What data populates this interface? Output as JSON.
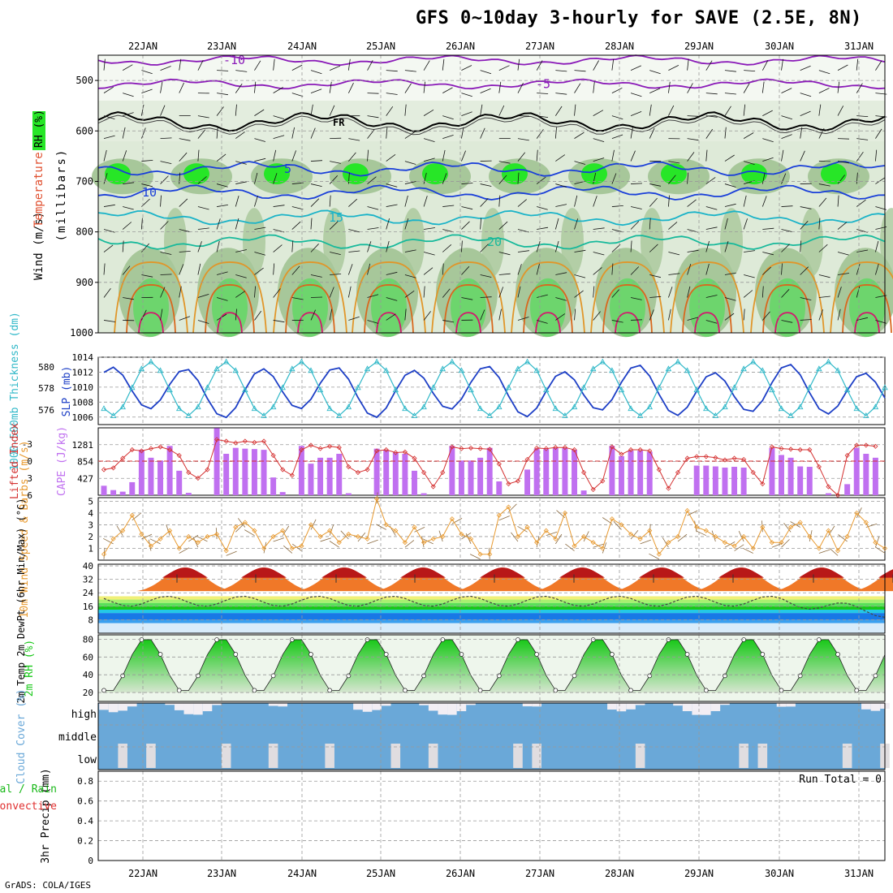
{
  "title": "GFS 0~10day 3-hourly for SAVE (2.5E, 8N)",
  "credit": "GrADS: COLA/IGES",
  "colors": {
    "rh_green_light": "#dbe8d5",
    "rh_green_mid": "#a7c79a",
    "rh_green_bright": "#27e627",
    "temp_purple": "#8a1ab8",
    "temp_blue": "#1a3fd9",
    "temp_cyan": "#1ab3c8",
    "temp_teal": "#17b99b",
    "temp_orange": "#e0962a",
    "temp_red": "#d11a6e",
    "slp_line": "#1d3fc6",
    "thickness_line": "#30b8c8",
    "cape_bar": "#c070f0",
    "lifted_index": "#d43030",
    "wind_line": "#e89a30",
    "rh2m_fill": "#18c818",
    "cloud_fill": "#6aa8d8",
    "rain_green": "#18b818",
    "conv_red": "#e03030"
  },
  "chart_data": [
    {
      "type": "area",
      "panel": "cross-section",
      "x_tick_labels": [
        "22JAN",
        "23JAN",
        "24JAN",
        "25JAN",
        "26JAN",
        "27JAN",
        "28JAN",
        "29JAN",
        "30JAN",
        "31JAN"
      ],
      "y_label": "(millibars)",
      "ylim": [
        450,
        1000
      ],
      "y_ticks": [
        500,
        600,
        700,
        800,
        900,
        1000
      ],
      "legend_labels": [
        "Wind (m/s)",
        "Temperature (°C)",
        "RH (%)"
      ],
      "temperature_contours": [
        {
          "label": "-10",
          "level": 460,
          "color": "purple"
        },
        {
          "label": "-5",
          "level": 507,
          "color": "purple"
        },
        {
          "label": "FR",
          "level": 582,
          "color": "black"
        },
        {
          "label": "5",
          "level": 675,
          "color": "blue"
        },
        {
          "label": "10",
          "level": 722,
          "color": "blue"
        },
        {
          "label": "15",
          "level": 772,
          "color": "cyan"
        },
        {
          "label": "20",
          "level": 820,
          "color": "teal"
        }
      ],
      "rh_labels": [
        "30",
        "50",
        "10"
      ]
    },
    {
      "type": "line",
      "panel": "slp-thickness",
      "ylabel_left": "1000-500mb Thickness (dm)",
      "ylabel_right": "SLP (mb)",
      "ylim_slp": [
        1005,
        1014
      ],
      "yticks_slp": [
        1006,
        1008,
        1010,
        1012,
        1014
      ],
      "yticks_thickness": [
        "576",
        "578",
        "580"
      ],
      "series": [
        {
          "name": "SLP (mb)",
          "period": "diurnal",
          "min": 1006.5,
          "max": 1012.5
        },
        {
          "name": "1000-500mb Thickness (dm)",
          "period": "diurnal",
          "min": 575.8,
          "max": 580.6
        }
      ]
    },
    {
      "type": "bar",
      "panel": "cape-li",
      "ylabel_left": "Lifted Index",
      "ylabel_right": "CAPE (J/kg)",
      "yticks_li": [
        "-3",
        "0",
        "3",
        "6"
      ],
      "yticks_cape": [
        "427",
        "854",
        "1281"
      ],
      "cape_values": [
        240,
        130,
        90,
        330,
        1150,
        950,
        880,
        1250,
        620,
        60,
        0,
        0,
        1700,
        1050,
        1200,
        1180,
        1170,
        1150,
        450,
        80,
        0,
        1250,
        800,
        950,
        950,
        1050,
        50,
        0,
        0,
        1180,
        1140,
        1080,
        1050,
        620,
        50,
        0,
        0,
        1250,
        880,
        880,
        950,
        1200,
        350,
        0,
        0,
        650,
        1180,
        1170,
        1200,
        1200,
        1150,
        120,
        0,
        0,
        1250,
        990,
        1130,
        1130,
        1100,
        0,
        0,
        0,
        0,
        750,
        750,
        730,
        700,
        720,
        700,
        0,
        0,
        1200,
        1020,
        950,
        730,
        720,
        0,
        50,
        0,
        280,
        1200,
        1050,
        950
      ],
      "li_values": [
        1.5,
        1.2,
        -0.5,
        -2.0,
        -1.8,
        -2.2,
        -2.5,
        -2.0,
        -1.0,
        2.0,
        3.0,
        1.5,
        -3.8,
        -3.5,
        -3.2,
        -3.5,
        -3.3,
        -3.5,
        -1.0,
        1.5,
        2.5,
        -2.0,
        -2.8,
        -2.2,
        -2.6,
        -2.4,
        1.0,
        2.0,
        1.5,
        -1.8,
        -2.0,
        -1.5,
        -1.6,
        -0.5,
        2.0,
        4.5,
        2.0,
        -2.5,
        -2.2,
        -2.3,
        -2.2,
        -2.1,
        0.5,
        4.0,
        3.5,
        -0.3,
        -2.3,
        -2.2,
        -2.4,
        -2.4,
        -2.0,
        2.0,
        5.0,
        3.5,
        -2.5,
        -1.2,
        -2.0,
        -2.0,
        -1.8,
        1.5,
        4.8,
        2.0,
        -0.5,
        -0.8,
        -0.8,
        -0.6,
        -0.2,
        -0.5,
        -0.3,
        2.0,
        4.0,
        -2.5,
        -2.2,
        -2.1,
        -2.0,
        -2.0,
        1.0,
        4.5,
        6.0,
        -1.0,
        -2.8,
        -2.8,
        -2.6
      ]
    },
    {
      "type": "line",
      "panel": "wind-10m",
      "ylabel": "10m Wind Speed & Barbs (m/s)",
      "ylim": [
        0,
        5
      ],
      "yticks": [
        "1",
        "2",
        "3",
        "4",
        "5"
      ],
      "values": [
        0.5,
        1.8,
        2.5,
        3.8,
        2.2,
        1.2,
        1.8,
        2.5,
        1.0,
        2.0,
        1.5,
        2.0,
        2.2,
        0.8,
        2.8,
        3.2,
        2.5,
        1.0,
        2.0,
        2.5,
        1.0,
        1.2,
        3.0,
        2.0,
        2.5,
        1.5,
        2.2,
        2.0,
        1.8,
        5.2,
        3.0,
        2.5,
        1.5,
        2.8,
        1.5,
        1.8,
        2.0,
        3.5,
        2.2,
        1.8,
        0.5,
        0.5,
        3.8,
        4.5,
        2.0,
        2.8,
        1.5,
        2.5,
        1.8,
        4.0,
        1.2,
        2.0,
        1.5,
        1.0,
        3.5,
        3.0,
        2.2,
        1.8,
        2.5,
        0.5,
        1.5,
        2.0,
        4.2,
        2.8,
        2.5,
        2.0,
        1.5,
        1.2,
        2.0,
        1.0,
        2.8,
        1.5,
        1.5,
        2.8,
        3.2,
        2.0,
        1.0,
        2.5,
        0.8,
        2.0,
        4.0,
        3.2,
        1.5,
        1.0
      ]
    },
    {
      "type": "area",
      "panel": "temp-2m",
      "ylabel": "2m Temp 2m DewPt (6hr Min/Max) (°C)",
      "ylim": [
        0,
        40
      ],
      "yticks": [
        "8",
        "16",
        "24",
        "32",
        "40"
      ],
      "temp_daily_min": 25,
      "temp_daily_max": 39,
      "dewpoint_range": [
        9,
        22
      ]
    },
    {
      "type": "area",
      "panel": "rh-2m",
      "ylabel": "2m RH (%)",
      "ylim": [
        10,
        85
      ],
      "yticks": [
        "20",
        "40",
        "60",
        "80"
      ],
      "daily_min": 20,
      "daily_max": 82
    },
    {
      "type": "bar",
      "panel": "cloud-cover",
      "ylabel": "Cloud Cover (%)",
      "layers": [
        "high",
        "middle",
        "low"
      ]
    },
    {
      "type": "bar",
      "panel": "precip",
      "ylabel": "3hr Precip (mm)",
      "legend_labels": [
        "Total / Rain",
        "Convective"
      ],
      "ylim": [
        0,
        0.9
      ],
      "yticks": [
        "0",
        "0.2",
        "0.4",
        "0.6",
        "0.8"
      ],
      "run_total": "Run Total = 0"
    }
  ],
  "x_bottom_labels": [
    "22JAN",
    "23JAN",
    "24JAN",
    "25JAN",
    "26JAN",
    "27JAN",
    "28JAN",
    "29JAN",
    "30JAN",
    "31JAN"
  ]
}
